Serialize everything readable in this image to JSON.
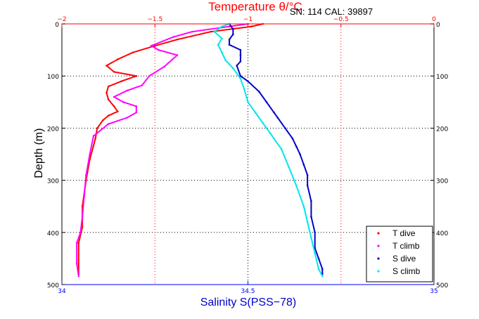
{
  "chart_data": {
    "type": "scatter",
    "header": "SN: 114  CAL: 39897",
    "top_axis": {
      "label": "Temperature θ/°C",
      "range": [
        -2,
        0
      ],
      "ticks": [
        -2,
        -1.5,
        -1,
        -0.5,
        0
      ],
      "tick_labels": [
        "−2",
        "−1.5",
        "−1",
        "−0.5",
        "0"
      ],
      "color": "#ff0000"
    },
    "bottom_axis": {
      "label": "Salinity S(PSS−78)",
      "range": [
        34,
        35
      ],
      "ticks": [
        34,
        34.5,
        35
      ],
      "tick_labels": [
        "34",
        "34.5",
        "35"
      ],
      "color": "#0000ff"
    },
    "y_axis": {
      "label": "Depth (m)",
      "range": [
        0,
        500
      ],
      "reversed": true,
      "ticks": [
        0,
        100,
        200,
        300,
        400,
        500
      ],
      "tick_labels": [
        "0",
        "100",
        "200",
        "300",
        "400",
        "500"
      ]
    },
    "grid": "dotted",
    "legend": {
      "placement": "bottom-right",
      "entries": [
        {
          "label": "T dive",
          "color": "#ff0000"
        },
        {
          "label": "T climb",
          "color": "#ff00ff"
        },
        {
          "label": "S dive",
          "color": "#0000cc"
        },
        {
          "label": "S climb",
          "color": "#00e5ee"
        }
      ]
    },
    "series": [
      {
        "name": "T dive",
        "axis": "temperature",
        "color": "#ff0000",
        "points": [
          [
            -0.92,
            0
          ],
          [
            -0.98,
            5
          ],
          [
            -1.2,
            15
          ],
          [
            -1.38,
            30
          ],
          [
            -1.5,
            42
          ],
          [
            -1.62,
            55
          ],
          [
            -1.7,
            68
          ],
          [
            -1.76,
            80
          ],
          [
            -1.72,
            92
          ],
          [
            -1.6,
            100
          ],
          [
            -1.68,
            110
          ],
          [
            -1.75,
            120
          ],
          [
            -1.76,
            132
          ],
          [
            -1.75,
            145
          ],
          [
            -1.72,
            158
          ],
          [
            -1.7,
            168
          ],
          [
            -1.75,
            176
          ],
          [
            -1.78,
            185
          ],
          [
            -1.81,
            200
          ],
          [
            -1.82,
            220
          ],
          [
            -1.85,
            260
          ],
          [
            -1.87,
            300
          ],
          [
            -1.89,
            350
          ],
          [
            -1.89,
            390
          ],
          [
            -1.91,
            420
          ],
          [
            -1.91,
            480
          ]
        ]
      },
      {
        "name": "T climb",
        "axis": "temperature",
        "color": "#ff00ff",
        "points": [
          [
            -1.91,
            484
          ],
          [
            -1.92,
            460
          ],
          [
            -1.92,
            420
          ],
          [
            -1.9,
            400
          ],
          [
            -1.89,
            370
          ],
          [
            -1.88,
            330
          ],
          [
            -1.87,
            290
          ],
          [
            -1.85,
            250
          ],
          [
            -1.83,
            215
          ],
          [
            -1.75,
            192
          ],
          [
            -1.65,
            180
          ],
          [
            -1.6,
            170
          ],
          [
            -1.6,
            158
          ],
          [
            -1.67,
            150
          ],
          [
            -1.72,
            140
          ],
          [
            -1.65,
            128
          ],
          [
            -1.57,
            118
          ],
          [
            -1.53,
            100
          ],
          [
            -1.45,
            82
          ],
          [
            -1.38,
            60
          ],
          [
            -1.48,
            50
          ],
          [
            -1.52,
            42
          ],
          [
            -1.4,
            25
          ],
          [
            -1.3,
            15
          ],
          [
            -1.1,
            5
          ],
          [
            -1.0,
            0
          ]
        ]
      },
      {
        "name": "S dive",
        "axis": "salinity",
        "color": "#0000cc",
        "points": [
          [
            34.45,
            0
          ],
          [
            34.46,
            10
          ],
          [
            34.46,
            20
          ],
          [
            34.45,
            30
          ],
          [
            34.45,
            40
          ],
          [
            34.48,
            50
          ],
          [
            34.48,
            60
          ],
          [
            34.48,
            72
          ],
          [
            34.47,
            80
          ],
          [
            34.48,
            100
          ],
          [
            34.5,
            110
          ],
          [
            34.53,
            130
          ],
          [
            34.55,
            150
          ],
          [
            34.57,
            170
          ],
          [
            34.58,
            180
          ],
          [
            34.6,
            200
          ],
          [
            34.62,
            220
          ],
          [
            34.63,
            235
          ],
          [
            34.64,
            250
          ],
          [
            34.65,
            270
          ],
          [
            34.66,
            290
          ],
          [
            34.66,
            310
          ],
          [
            34.67,
            340
          ],
          [
            34.67,
            370
          ],
          [
            34.68,
            400
          ],
          [
            34.68,
            430
          ],
          [
            34.69,
            450
          ],
          [
            34.7,
            470
          ],
          [
            34.7,
            480
          ]
        ]
      },
      {
        "name": "S climb",
        "axis": "salinity",
        "color": "#00e5ee",
        "points": [
          [
            34.7,
            484
          ],
          [
            34.69,
            470
          ],
          [
            34.68,
            440
          ],
          [
            34.67,
            410
          ],
          [
            34.66,
            380
          ],
          [
            34.65,
            350
          ],
          [
            34.63,
            310
          ],
          [
            34.61,
            275
          ],
          [
            34.59,
            240
          ],
          [
            34.56,
            210
          ],
          [
            34.54,
            190
          ],
          [
            34.52,
            170
          ],
          [
            34.5,
            150
          ],
          [
            34.49,
            125
          ],
          [
            34.48,
            105
          ],
          [
            34.46,
            85
          ],
          [
            34.44,
            70
          ],
          [
            34.43,
            55
          ],
          [
            34.42,
            40
          ],
          [
            34.43,
            28
          ],
          [
            34.41,
            15
          ],
          [
            34.43,
            5
          ],
          [
            34.45,
            0
          ]
        ]
      }
    ]
  }
}
